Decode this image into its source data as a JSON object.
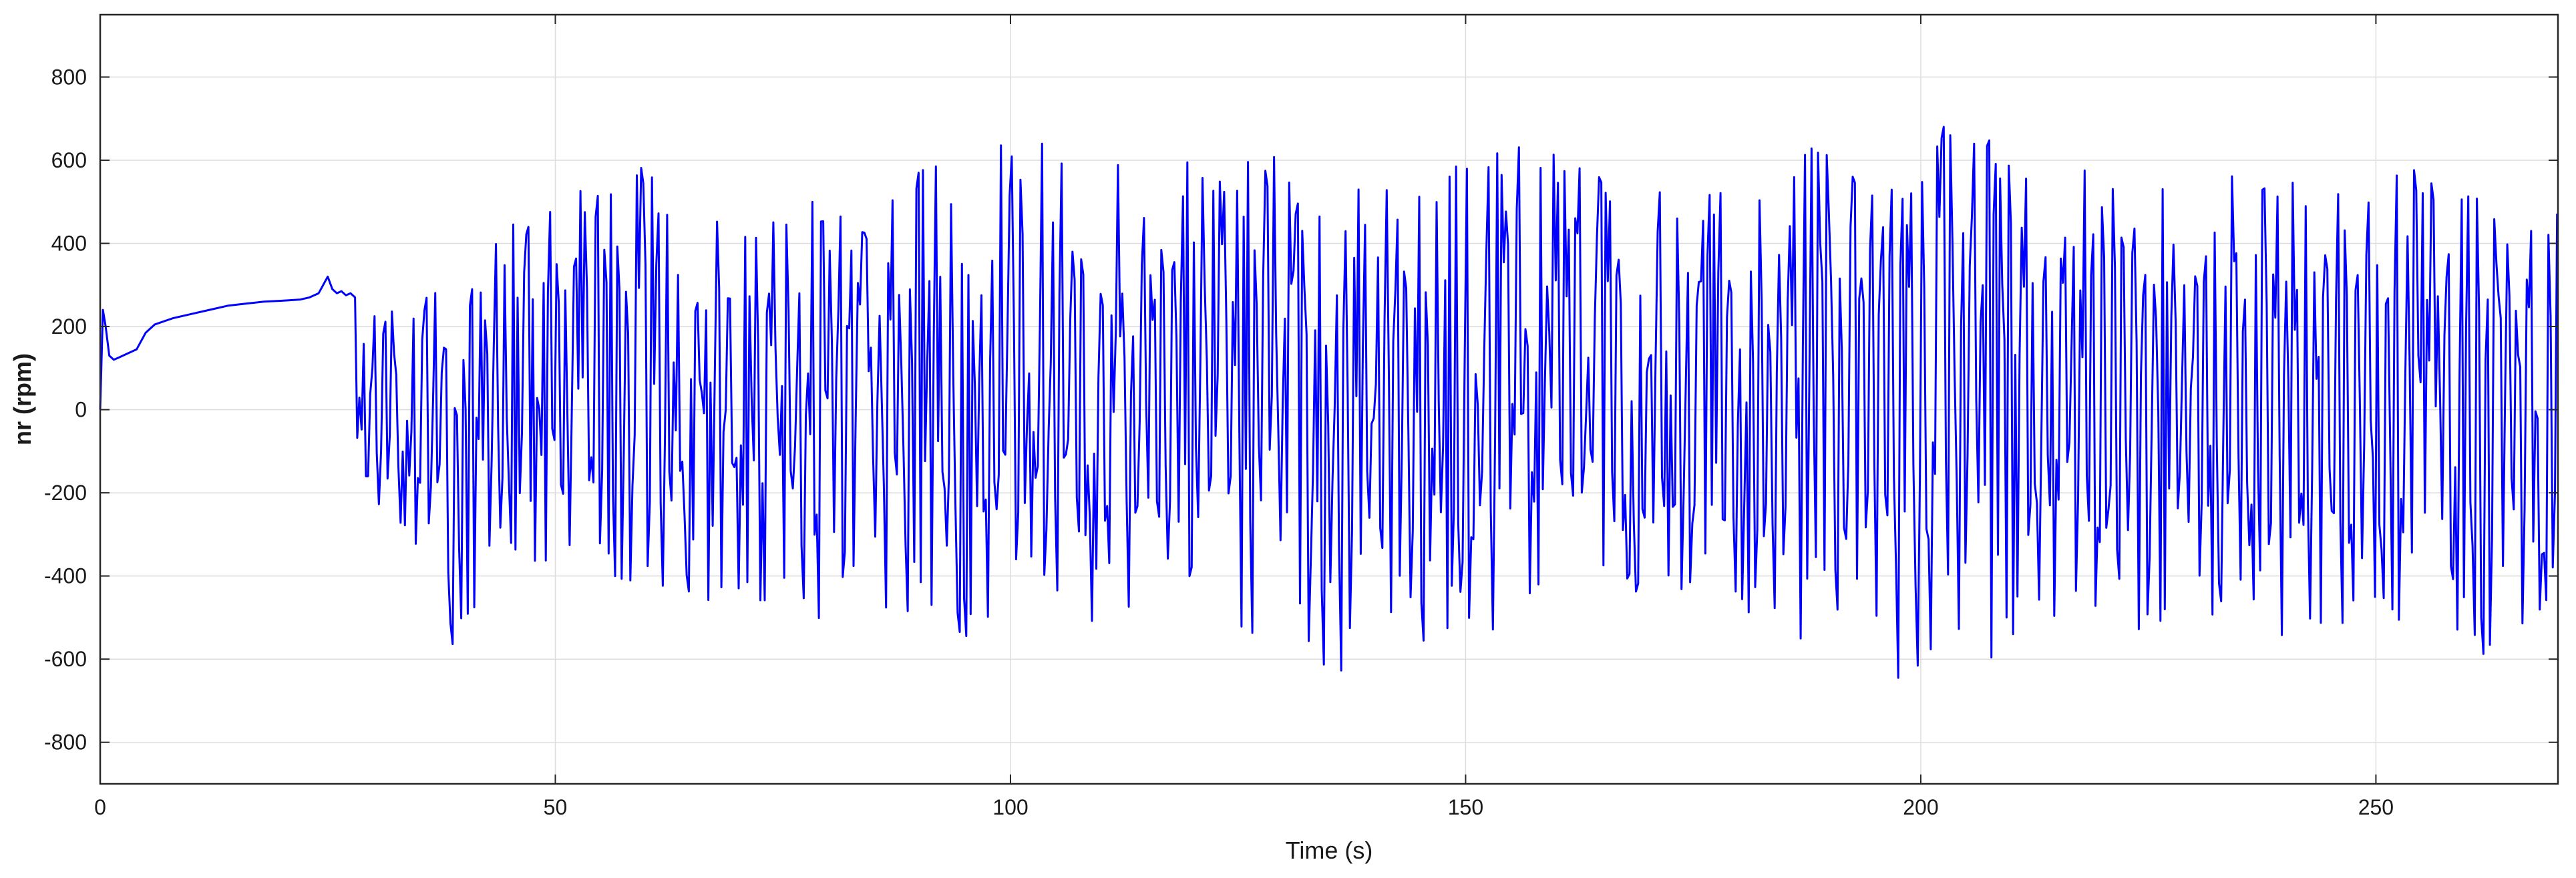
{
  "chart_data": {
    "type": "line",
    "title": "",
    "xlabel": "Time (s)",
    "ylabel": "nr (rpm)",
    "xlim": [
      0,
      270
    ],
    "ylim": [
      -900,
      950
    ],
    "xticks": [
      0,
      50,
      100,
      150,
      200,
      250
    ],
    "yticks": [
      -800,
      -600,
      -400,
      -200,
      0,
      200,
      400,
      600,
      800
    ],
    "grid": true,
    "legend": "none",
    "line_color": "#0000ff",
    "series": [
      {
        "x": [
          0,
          0.3,
          0.6,
          1,
          1.5,
          2,
          3,
          4,
          5,
          6,
          8,
          10,
          12,
          14,
          16,
          18,
          20,
          22,
          23,
          24,
          24.5,
          25,
          25.5,
          26,
          26.5,
          27,
          27.5,
          28
        ],
        "y": [
          0,
          240,
          200,
          130,
          120,
          125,
          135,
          145,
          185,
          205,
          220,
          230,
          240,
          250,
          255,
          260,
          262,
          265,
          270,
          280,
          300,
          320,
          290,
          280,
          285,
          275,
          280,
          270
        ]
      }
    ],
    "oscillation": {
      "t_start": 28,
      "t_end": 270,
      "samples_per_second": 4.2,
      "envelope": [
        {
          "t": 28,
          "max": 280,
          "min": -160
        },
        {
          "t": 33,
          "max": 260,
          "min": -300
        },
        {
          "t": 37,
          "max": 490,
          "min": -420
        },
        {
          "t": 38.5,
          "max": 200,
          "min": -605
        },
        {
          "t": 45,
          "max": 470,
          "min": -400
        },
        {
          "t": 50,
          "max": 500,
          "min": -360
        },
        {
          "t": 56,
          "max": 580,
          "min": -400
        },
        {
          "t": 63,
          "max": 590,
          "min": -480
        },
        {
          "t": 70,
          "max": 450,
          "min": -440
        },
        {
          "t": 77,
          "max": 540,
          "min": -530
        },
        {
          "t": 83,
          "max": 450,
          "min": -570
        },
        {
          "t": 90,
          "max": 580,
          "min": -470
        },
        {
          "t": 95,
          "max": 600,
          "min": -560
        },
        {
          "t": 102,
          "max": 670,
          "min": -430
        },
        {
          "t": 110,
          "max": 600,
          "min": -520
        },
        {
          "t": 120,
          "max": 600,
          "min": -430
        },
        {
          "t": 126,
          "max": 600,
          "min": -550
        },
        {
          "t": 130,
          "max": 630,
          "min": -470
        },
        {
          "t": 135.5,
          "max": 450,
          "min": -720
        },
        {
          "t": 140,
          "max": 600,
          "min": -600
        },
        {
          "t": 143,
          "max": 500,
          "min": -640
        },
        {
          "t": 150,
          "max": 600,
          "min": -580
        },
        {
          "t": 156,
          "max": 655,
          "min": -500
        },
        {
          "t": 165,
          "max": 580,
          "min": -440
        },
        {
          "t": 175,
          "max": 500,
          "min": -450
        },
        {
          "t": 185,
          "max": 600,
          "min": -520
        },
        {
          "t": 188,
          "max": 640,
          "min": -650
        },
        {
          "t": 194,
          "max": 580,
          "min": -620
        },
        {
          "t": 199.5,
          "max": 520,
          "min": -700
        },
        {
          "t": 202.5,
          "max": 755,
          "min": -550
        },
        {
          "t": 207,
          "max": 650,
          "min": -630
        },
        {
          "t": 215,
          "max": 630,
          "min": -500
        },
        {
          "t": 225,
          "max": 590,
          "min": -540
        },
        {
          "t": 235,
          "max": 570,
          "min": -500
        },
        {
          "t": 240,
          "max": 570,
          "min": -580
        },
        {
          "t": 250,
          "max": 560,
          "min": -500
        },
        {
          "t": 258,
          "max": 600,
          "min": -625
        },
        {
          "t": 263,
          "max": 480,
          "min": -590
        },
        {
          "t": 270,
          "max": 480,
          "min": -450
        }
      ]
    }
  }
}
